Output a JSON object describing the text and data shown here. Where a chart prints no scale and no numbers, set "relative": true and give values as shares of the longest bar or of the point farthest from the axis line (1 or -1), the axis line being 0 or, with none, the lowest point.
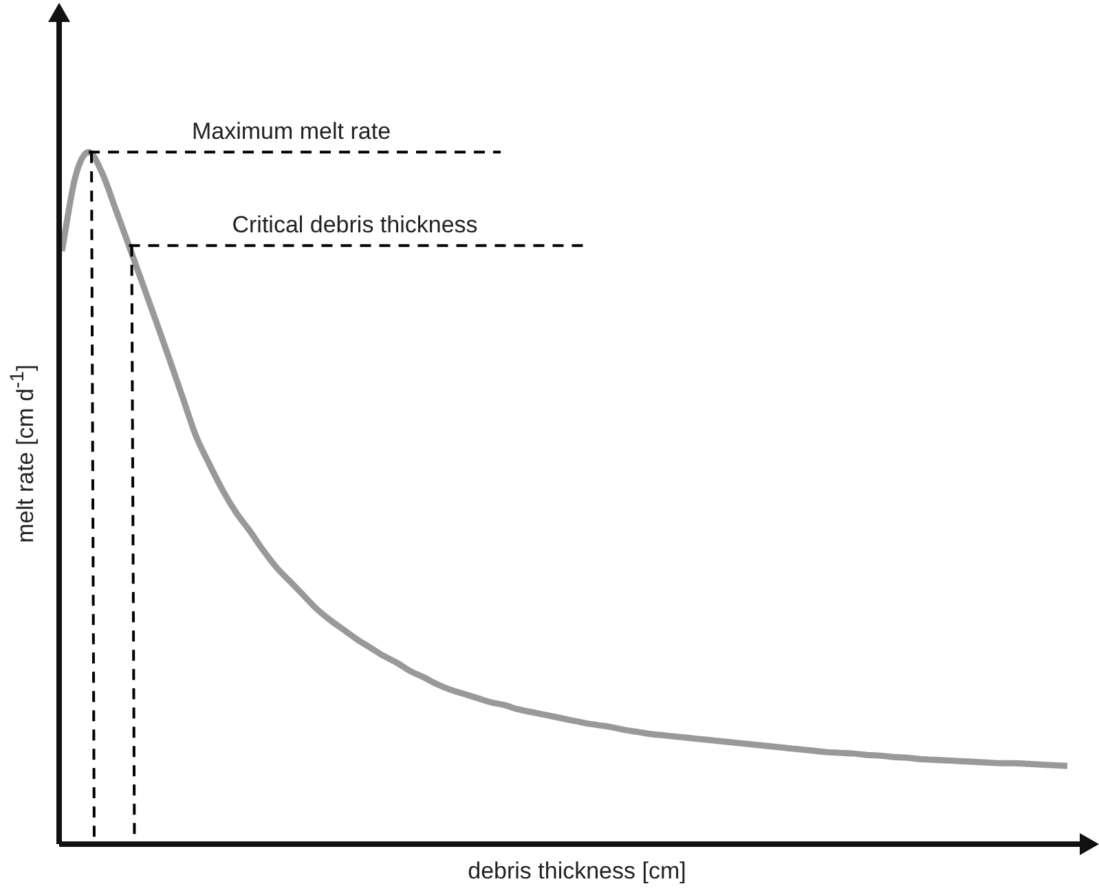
{
  "chart_data": {
    "type": "line",
    "relative": true,
    "xlabel": "debris thickness [cm]",
    "ylabel": "melt rate [cm d$^{-1}$]",
    "categories": [
      null,
      null,
      null,
      null,
      null,
      null,
      null,
      null,
      null,
      null,
      null,
      null,
      null,
      null,
      null,
      null,
      null,
      null,
      null,
      null,
      null,
      null,
      null,
      null,
      null,
      null,
      null,
      null,
      null,
      null,
      null,
      null,
      null,
      null,
      null,
      null,
      null,
      null,
      null,
      null,
      null,
      null,
      null,
      null,
      null,
      null,
      null,
      null,
      null,
      null,
      null,
      null,
      null,
      null,
      null,
      null,
      null,
      null,
      null,
      null,
      null,
      null,
      null,
      null,
      null,
      null,
      null,
      null,
      null,
      null,
      null,
      null,
      null,
      null,
      null,
      null
    ],
    "series": [
      {
        "color": "#999999",
        "values": [
          0.857,
          0.964,
          1.0,
          0.97,
          0.918,
          0.865,
          0.811,
          0.757,
          0.702,
          0.646,
          0.59,
          0.549,
          0.511,
          0.479,
          0.453,
          0.425,
          0.4,
          0.38,
          0.36,
          0.34,
          0.324,
          0.31,
          0.296,
          0.284,
          0.272,
          0.262,
          0.25,
          0.241,
          0.231,
          0.223,
          0.217,
          0.211,
          0.205,
          0.201,
          0.195,
          0.191,
          0.187,
          0.183,
          0.179,
          0.175,
          0.172,
          0.169,
          0.165,
          0.162,
          0.159,
          0.157,
          0.155,
          0.153,
          0.151,
          0.149,
          0.147,
          0.145,
          0.143,
          0.141,
          0.139,
          0.137,
          0.135,
          0.133,
          0.132,
          0.131,
          0.129,
          0.128,
          0.126,
          0.125,
          0.123,
          0.122,
          0.121,
          0.12,
          0.119,
          0.118,
          0.117,
          0.117,
          0.116,
          0.115,
          0.114,
          0.113
        ]
      }
    ],
    "ref_lines": [
      {
        "axis": "y",
        "value": 1,
        "label": "Maximum melt rate",
        "line_style": "dashed",
        "color": "#000000"
      },
      {
        "axis": "y",
        "value": 0.865,
        "label": "Critical debris thickness",
        "line_style": "dashed",
        "color": "#000000"
      }
    ],
    "legend": false,
    "marker": "none",
    "line_style": "solid"
  }
}
